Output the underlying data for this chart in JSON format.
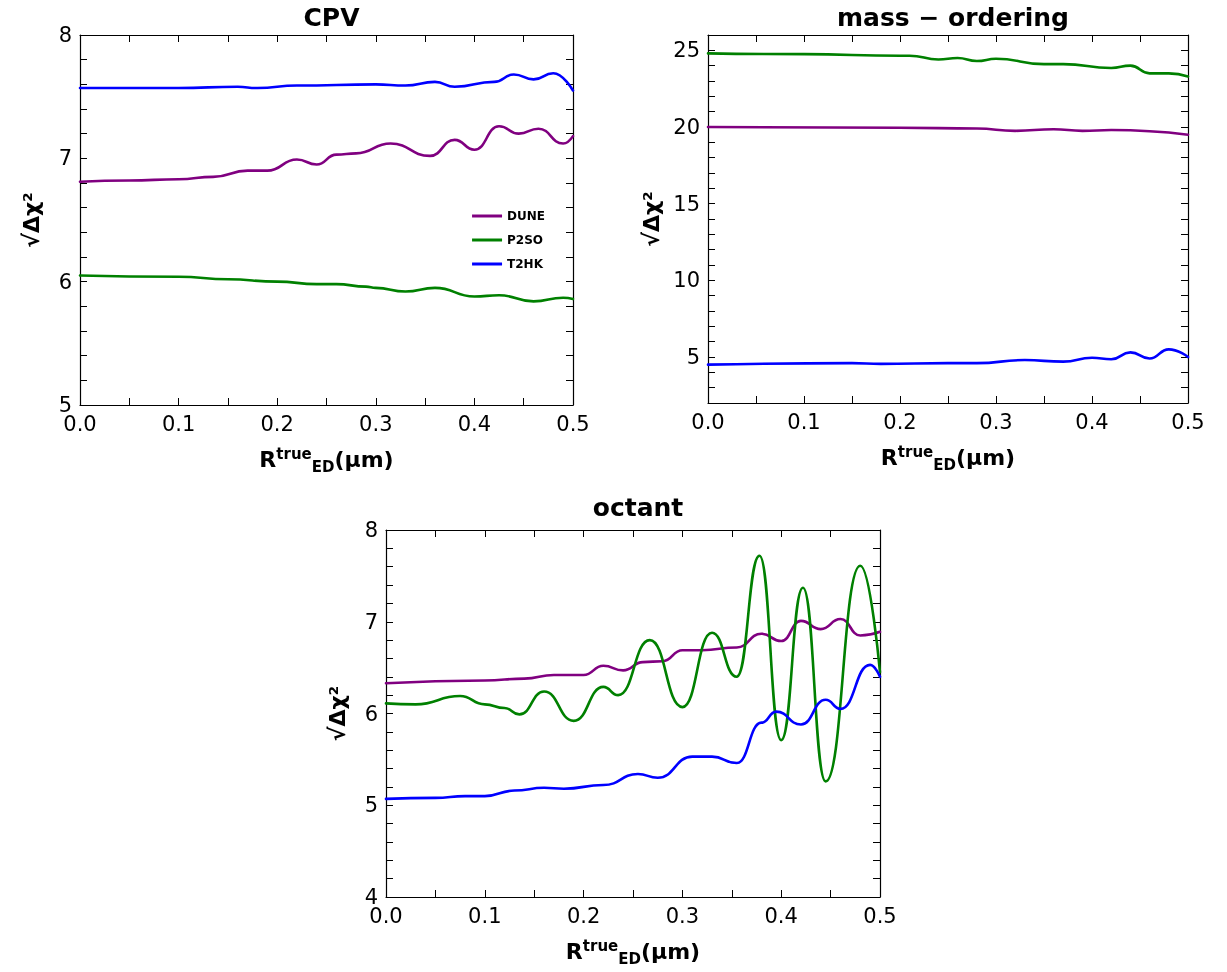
{
  "chart_data": [
    {
      "type": "line",
      "title": "CPV",
      "xlabel": "R$^{true}$$_{ED}$(μm)",
      "ylabel": "√Δχ²",
      "legend": "right",
      "grid": false,
      "marker": "none",
      "line_style": "solid",
      "xlim": [
        0,
        0.5
      ],
      "ylim": [
        5,
        8
      ],
      "xticks": [
        {
          "value": 0,
          "label": "0.0"
        },
        {
          "value": 0.05,
          "label": null
        },
        {
          "value": 0.1,
          "label": "0.1"
        },
        {
          "value": 0.15,
          "label": null
        },
        {
          "value": 0.2,
          "label": "0.2"
        },
        {
          "value": 0.25,
          "label": null
        },
        {
          "value": 0.3,
          "label": "0.3"
        },
        {
          "value": 0.35,
          "label": null
        },
        {
          "value": 0.4,
          "label": "0.4"
        },
        {
          "value": 0.45,
          "label": null
        },
        {
          "value": 0.5,
          "label": "0.5"
        }
      ],
      "yticks": [
        5,
        {
          "value": 5.2,
          "label": null
        },
        {
          "value": 5.4,
          "label": null
        },
        {
          "value": 5.6,
          "label": null
        },
        {
          "value": 5.8,
          "label": null
        },
        6,
        {
          "value": 6.2,
          "label": null
        },
        {
          "value": 6.4,
          "label": null
        },
        {
          "value": 6.6,
          "label": null
        },
        {
          "value": 6.8,
          "label": null
        },
        7,
        {
          "value": 7.2,
          "label": null
        },
        {
          "value": 7.4,
          "label": null
        },
        {
          "value": 7.6,
          "label": null
        },
        {
          "value": 7.8,
          "label": null
        },
        8
      ],
      "series": [
        {
          "name": "DUNE",
          "color": "#800080",
          "x": [
            0,
            0.05,
            0.1,
            0.135,
            0.17,
            0.19,
            0.22,
            0.24,
            0.26,
            0.28,
            0.315,
            0.355,
            0.38,
            0.4,
            0.425,
            0.445,
            0.465,
            0.49,
            0.5
          ],
          "values": [
            6.81,
            6.82,
            6.83,
            6.85,
            6.9,
            6.9,
            6.99,
            6.95,
            7.03,
            7.04,
            7.12,
            7.02,
            7.15,
            7.07,
            7.26,
            7.2,
            7.24,
            7.12,
            7.18
          ]
        },
        {
          "name": "P2SO",
          "color": "#008000",
          "x": [
            0,
            0.1,
            0.15,
            0.2,
            0.24,
            0.26,
            0.29,
            0.3,
            0.33,
            0.36,
            0.4,
            0.425,
            0.46,
            0.49,
            0.5
          ],
          "values": [
            6.05,
            6.04,
            6.02,
            6,
            5.98,
            5.98,
            5.96,
            5.95,
            5.92,
            5.95,
            5.88,
            5.89,
            5.84,
            5.87,
            5.86
          ]
        },
        {
          "name": "T2HK",
          "color": "#0000ff",
          "x": [
            0,
            0.1,
            0.16,
            0.18,
            0.22,
            0.3,
            0.33,
            0.36,
            0.38,
            0.42,
            0.44,
            0.46,
            0.48,
            0.5
          ],
          "values": [
            7.57,
            7.57,
            7.58,
            7.57,
            7.59,
            7.6,
            7.59,
            7.62,
            7.58,
            7.62,
            7.68,
            7.64,
            7.69,
            7.55
          ]
        }
      ]
    },
    {
      "type": "line",
      "title": "mass − ordering",
      "xlabel": "R$^{true}$$_{ED}$(μm)",
      "ylabel": "√Δχ²",
      "grid": false,
      "marker": "none",
      "line_style": "solid",
      "xlim": [
        0,
        0.5
      ],
      "ylim": [
        2,
        26
      ],
      "xticks": [
        {
          "value": 0,
          "label": "0.0"
        },
        {
          "value": 0.05,
          "label": null
        },
        {
          "value": 0.1,
          "label": "0.1"
        },
        {
          "value": 0.15,
          "label": null
        },
        {
          "value": 0.2,
          "label": "0.2"
        },
        {
          "value": 0.25,
          "label": null
        },
        {
          "value": 0.3,
          "label": "0.3"
        },
        {
          "value": 0.35,
          "label": null
        },
        {
          "value": 0.4,
          "label": "0.4"
        },
        {
          "value": 0.45,
          "label": null
        },
        {
          "value": 0.5,
          "label": "0.5"
        }
      ],
      "yticks": [
        {
          "value": 3,
          "label": null
        },
        {
          "value": 4,
          "label": null
        },
        5,
        {
          "value": 6,
          "label": null
        },
        {
          "value": 7,
          "label": null
        },
        {
          "value": 8,
          "label": null
        },
        {
          "value": 9,
          "label": null
        },
        10,
        {
          "value": 11,
          "label": null
        },
        {
          "value": 12,
          "label": null
        },
        {
          "value": 13,
          "label": null
        },
        {
          "value": 14,
          "label": null
        },
        15,
        {
          "value": 16,
          "label": null
        },
        {
          "value": 17,
          "label": null
        },
        {
          "value": 18,
          "label": null
        },
        {
          "value": 19,
          "label": null
        },
        20,
        {
          "value": 21,
          "label": null
        },
        {
          "value": 22,
          "label": null
        },
        {
          "value": 23,
          "label": null
        },
        {
          "value": 24,
          "label": null
        },
        25
      ],
      "series": [
        {
          "color": "#800080",
          "x": [
            0,
            0.2,
            0.28,
            0.32,
            0.36,
            0.39,
            0.42,
            0.5
          ],
          "values": [
            20,
            19.95,
            19.9,
            19.75,
            19.85,
            19.75,
            19.8,
            19.5
          ]
        },
        {
          "color": "#008000",
          "x": [
            0,
            0.1,
            0.2,
            0.21,
            0.24,
            0.26,
            0.28,
            0.3,
            0.35,
            0.37,
            0.42,
            0.44,
            0.46,
            0.48,
            0.5
          ],
          "values": [
            24.8,
            24.75,
            24.65,
            24.65,
            24.4,
            24.5,
            24.3,
            24.45,
            24.1,
            24.1,
            23.85,
            24,
            23.5,
            23.5,
            23.3
          ]
        },
        {
          "color": "#0000ff",
          "x": [
            0,
            0.15,
            0.18,
            0.25,
            0.28,
            0.33,
            0.37,
            0.4,
            0.42,
            0.44,
            0.46,
            0.48,
            0.5
          ],
          "values": [
            4.5,
            4.6,
            4.55,
            4.6,
            4.6,
            4.8,
            4.7,
            4.95,
            4.85,
            5.3,
            4.9,
            5.5,
            5
          ]
        }
      ]
    },
    {
      "type": "line",
      "title": "octant",
      "xlabel": "R$^{true}$$_{ED}$(μm)",
      "ylabel": "√Δχ²",
      "grid": false,
      "marker": "none",
      "line_style": "solid",
      "xlim": [
        0,
        0.5
      ],
      "ylim": [
        4,
        8
      ],
      "xticks": [
        {
          "value": 0,
          "label": "0.0"
        },
        {
          "value": 0.05,
          "label": null
        },
        {
          "value": 0.1,
          "label": "0.1"
        },
        {
          "value": 0.15,
          "label": null
        },
        {
          "value": 0.2,
          "label": "0.2"
        },
        {
          "value": 0.25,
          "label": null
        },
        {
          "value": 0.3,
          "label": "0.3"
        },
        {
          "value": 0.35,
          "label": null
        },
        {
          "value": 0.4,
          "label": "0.4"
        },
        {
          "value": 0.45,
          "label": null
        },
        {
          "value": 0.5,
          "label": "0.5"
        }
      ],
      "yticks": [
        4,
        {
          "value": 4.2,
          "label": null
        },
        {
          "value": 4.4,
          "label": null
        },
        {
          "value": 4.6,
          "label": null
        },
        {
          "value": 4.8,
          "label": null
        },
        5,
        {
          "value": 5.2,
          "label": null
        },
        {
          "value": 5.4,
          "label": null
        },
        {
          "value": 5.6,
          "label": null
        },
        {
          "value": 5.8,
          "label": null
        },
        6,
        {
          "value": 6.2,
          "label": null
        },
        {
          "value": 6.4,
          "label": null
        },
        {
          "value": 6.6,
          "label": null
        },
        {
          "value": 6.8,
          "label": null
        },
        7,
        {
          "value": 7.2,
          "label": null
        },
        {
          "value": 7.4,
          "label": null
        },
        {
          "value": 7.6,
          "label": null
        },
        {
          "value": 7.8,
          "label": null
        },
        8
      ],
      "series": [
        {
          "color": "#800080",
          "x": [
            0,
            0.1,
            0.14,
            0.17,
            0.2,
            0.22,
            0.24,
            0.26,
            0.28,
            0.3,
            0.32,
            0.355,
            0.38,
            0.4,
            0.42,
            0.44,
            0.46,
            0.48,
            0.5
          ],
          "values": [
            6.33,
            6.36,
            6.38,
            6.42,
            6.42,
            6.52,
            6.47,
            6.56,
            6.57,
            6.69,
            6.69,
            6.72,
            6.87,
            6.79,
            7.01,
            6.92,
            7.03,
            6.85,
            6.89
          ]
        },
        {
          "color": "#008000",
          "x": [
            0,
            0.03,
            0.075,
            0.1,
            0.12,
            0.135,
            0.16,
            0.19,
            0.22,
            0.235,
            0.267,
            0.3,
            0.33,
            0.355,
            0.378,
            0.4,
            0.422,
            0.445,
            0.48,
            0.5
          ],
          "values": [
            6.11,
            6.1,
            6.19,
            6.1,
            6.06,
            5.99,
            6.24,
            5.92,
            6.29,
            6.2,
            6.8,
            6.07,
            6.88,
            6.4,
            7.72,
            5.71,
            7.37,
            5.26,
            7.61,
            6.45
          ]
        },
        {
          "color": "#0000ff",
          "x": [
            0,
            0.05,
            0.08,
            0.1,
            0.13,
            0.16,
            0.18,
            0.22,
            0.255,
            0.275,
            0.31,
            0.33,
            0.355,
            0.38,
            0.395,
            0.42,
            0.445,
            0.46,
            0.49,
            0.5
          ],
          "values": [
            5.07,
            5.08,
            5.1,
            5.1,
            5.16,
            5.19,
            5.18,
            5.22,
            5.34,
            5.3,
            5.53,
            5.53,
            5.46,
            5.9,
            6.02,
            5.88,
            6.15,
            6.05,
            6.53,
            6.4
          ]
        }
      ]
    }
  ]
}
